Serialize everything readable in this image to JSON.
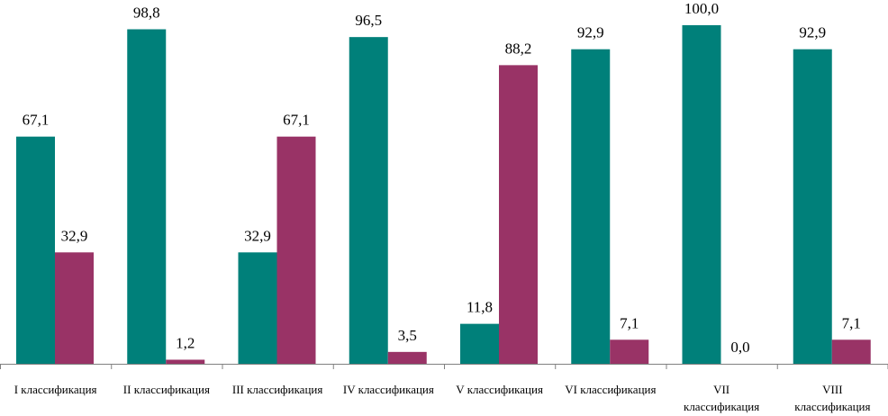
{
  "chart_data": {
    "type": "bar",
    "title": "",
    "xlabel": "",
    "ylabel": "",
    "ylim": [
      0,
      100
    ],
    "grid": false,
    "categories": [
      [
        "I классификация"
      ],
      [
        "II классификация"
      ],
      [
        "III классификация"
      ],
      [
        "IV классификация"
      ],
      [
        "V классификация"
      ],
      [
        "VI классификация"
      ],
      [
        "VII",
        "классификация"
      ],
      [
        "VIII",
        "классификация"
      ]
    ],
    "series": [
      {
        "name": "series-1",
        "color": "#00807A",
        "values": [
          67.1,
          98.8,
          32.9,
          96.5,
          11.8,
          92.9,
          100.0,
          92.9
        ],
        "labels": [
          "67,1",
          "98,8",
          "32,9",
          "96,5",
          "11,8",
          "92,9",
          "100,0",
          "92,9"
        ]
      },
      {
        "name": "series-2",
        "color": "#993366",
        "values": [
          32.9,
          1.2,
          67.1,
          3.5,
          88.2,
          7.1,
          0.0,
          7.1
        ],
        "labels": [
          "32,9",
          "1,2",
          "67,1",
          "3,5",
          "88,2",
          "7,1",
          "0,0",
          "7,1"
        ]
      }
    ]
  }
}
